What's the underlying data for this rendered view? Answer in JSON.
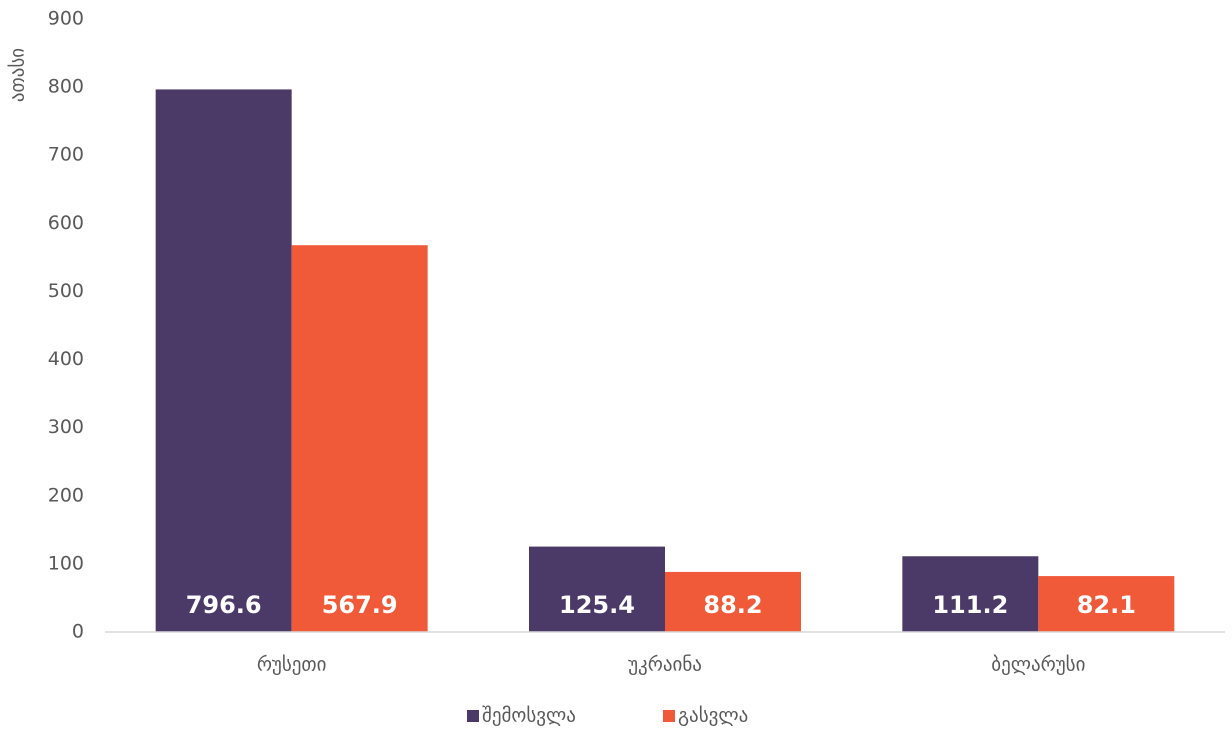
{
  "chart_data": {
    "type": "bar",
    "y_label": "ათასი",
    "categories": [
      "რუსეთი",
      "უკრაინა",
      "ბელარუსი"
    ],
    "series": [
      {
        "name": "შემოსვლა",
        "color": "#4b3a68",
        "values": [
          796.6,
          125.4,
          111.2
        ]
      },
      {
        "name": "გასვლა",
        "color": "#f05a38",
        "values": [
          567.9,
          88.2,
          82.1
        ]
      }
    ],
    "ylim": [
      0,
      900
    ],
    "yticks": [
      0,
      100,
      200,
      300,
      400,
      500,
      600,
      700,
      800,
      900
    ],
    "grid": false,
    "legend": "bottom"
  }
}
